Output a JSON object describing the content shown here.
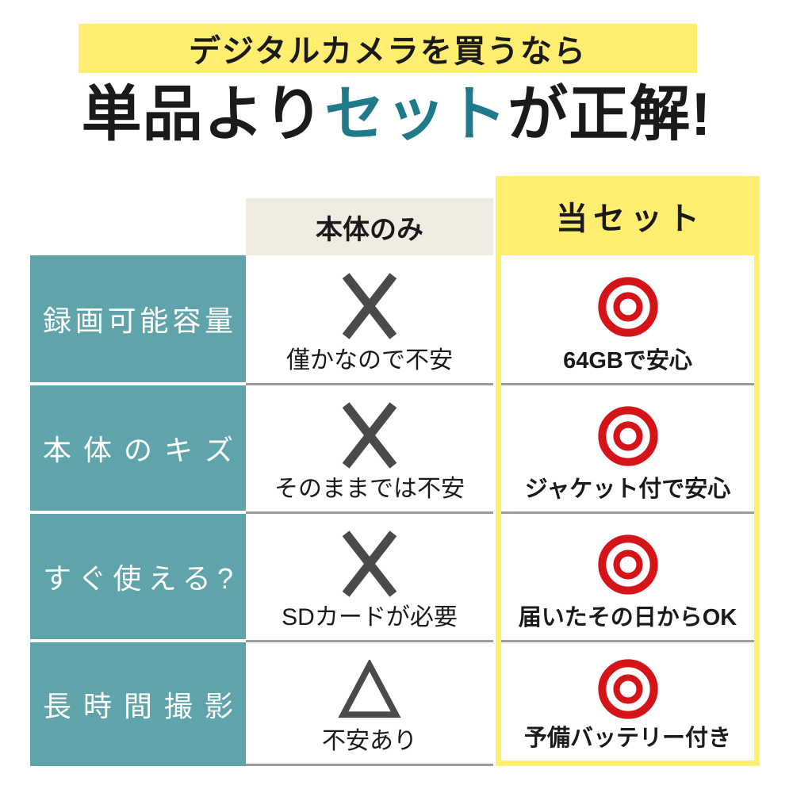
{
  "banner": {
    "text": "デジタルカメラを買うなら"
  },
  "title": {
    "pre": "単品より",
    "highlight": "セット",
    "post": "が正解!"
  },
  "table": {
    "col_headers": [
      {
        "label": "本体のみ"
      },
      {
        "label": "当セット"
      }
    ],
    "rows": [
      {
        "label": "録画可能容量",
        "single": {
          "mark": "cross-mark",
          "caption": "僅かなので不安"
        },
        "set": {
          "mark": "double-circle-mark",
          "caption": "64GBで安心"
        }
      },
      {
        "label": "本体のキズ",
        "single": {
          "mark": "cross-mark",
          "caption": "そのままでは不安"
        },
        "set": {
          "mark": "double-circle-mark",
          "caption": "ジャケット付で安心"
        }
      },
      {
        "label": "すぐ使える?",
        "single": {
          "mark": "cross-mark",
          "caption": "SDカードが必要"
        },
        "set": {
          "mark": "double-circle-mark",
          "caption": "届いたその日からOK"
        }
      },
      {
        "label": "長時間撮影",
        "single": {
          "mark": "triangle-mark",
          "caption": "不安あり"
        },
        "set": {
          "mark": "double-circle-mark",
          "caption": "予備バッテリー付き"
        }
      }
    ]
  },
  "colors": {
    "accent_yellow": "#ffee70",
    "teal_cell": "#5fa3ab",
    "teal_title_text": "#1f7a8a",
    "beige_header": "#f0ece2",
    "mark_red": "#d41418",
    "mark_gray": "#4a4a4d",
    "divider_gray": "#9c9c9c",
    "text_black": "#1a1a1a",
    "label_text_white": "#ffffff"
  }
}
